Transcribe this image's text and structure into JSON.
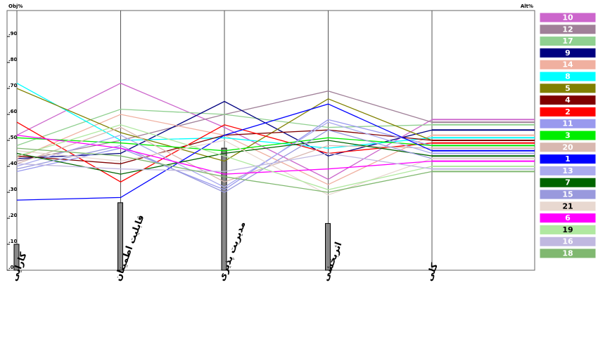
{
  "chart_data": {
    "type": "parallel",
    "y_axis_label": "Obj%",
    "alt_axis_label": "Alt%",
    "categories": [
      "کارایی",
      "قابلیت اطمینان",
      "مدیریت پذیری",
      "اثربخشی",
      "کلی"
    ],
    "weights": [
      0.1,
      0.26,
      0.47,
      0.18,
      null
    ],
    "ylim": [
      0,
      1
    ],
    "yticks": [
      {
        "value": 0,
        "label": ".00"
      },
      {
        "value": 0.1,
        "label": ".10"
      },
      {
        "value": 0.2,
        "label": ".20"
      },
      {
        "value": 0.3,
        "label": ".30"
      },
      {
        "value": 0.4,
        "label": ".40"
      },
      {
        "value": 0.5,
        "label": ".50"
      },
      {
        "value": 0.6,
        "label": ".60"
      },
      {
        "value": 0.7,
        "label": ".70"
      },
      {
        "value": 0.8,
        "label": ".80"
      },
      {
        "value": 0.9,
        "label": ".90"
      }
    ],
    "series": [
      {
        "name": "10",
        "color": "#cc66cc",
        "values": [
          0.52,
          0.72,
          0.55,
          0.35,
          0.58
        ]
      },
      {
        "name": "12",
        "color": "#a08098",
        "values": [
          0.42,
          0.5,
          0.6,
          0.69,
          0.57
        ]
      },
      {
        "name": "17",
        "color": "#90d090",
        "values": [
          0.48,
          0.62,
          0.6,
          0.55,
          0.56
        ]
      },
      {
        "name": "9",
        "color": "#000080",
        "values": [
          0.43,
          0.45,
          0.65,
          0.44,
          0.54
        ]
      },
      {
        "name": "14",
        "color": "#f0b0a0",
        "values": [
          0.43,
          0.6,
          0.52,
          0.33,
          0.52
        ]
      },
      {
        "name": "8",
        "color": "#00ffff",
        "values": [
          0.72,
          0.5,
          0.51,
          0.47,
          0.51
        ]
      },
      {
        "name": "5",
        "color": "#808000",
        "values": [
          0.7,
          0.53,
          0.42,
          0.66,
          0.5
        ]
      },
      {
        "name": "4",
        "color": "#800000",
        "values": [
          0.44,
          0.41,
          0.52,
          0.54,
          0.5
        ]
      },
      {
        "name": "2",
        "color": "#ff0000",
        "values": [
          0.57,
          0.34,
          0.56,
          0.45,
          0.49
        ]
      },
      {
        "name": "11",
        "color": "#9999ee",
        "values": [
          0.38,
          0.47,
          0.31,
          0.58,
          0.48
        ]
      },
      {
        "name": "3",
        "color": "#00ee00",
        "values": [
          0.51,
          0.49,
          0.46,
          0.51,
          0.48
        ]
      },
      {
        "name": "20",
        "color": "#d8b8b0",
        "values": [
          0.41,
          0.55,
          0.34,
          0.48,
          0.47
        ]
      },
      {
        "name": "1",
        "color": "#0000ff",
        "values": [
          0.27,
          0.28,
          0.52,
          0.64,
          0.46
        ]
      },
      {
        "name": "13",
        "color": "#aaaaee",
        "values": [
          0.4,
          0.52,
          0.32,
          0.57,
          0.45
        ]
      },
      {
        "name": "7",
        "color": "#006400",
        "values": [
          0.45,
          0.37,
          0.45,
          0.5,
          0.44
        ]
      },
      {
        "name": "15",
        "color": "#9999dd",
        "values": [
          0.39,
          0.48,
          0.3,
          0.54,
          0.43
        ]
      },
      {
        "name": "21",
        "color": "#e8d8d0",
        "values": [
          0.46,
          0.42,
          0.5,
          0.29,
          0.43
        ]
      },
      {
        "name": "6",
        "color": "#ff00ff",
        "values": [
          0.52,
          0.47,
          0.37,
          0.39,
          0.42
        ]
      },
      {
        "name": "19",
        "color": "#b0e8a0",
        "values": [
          0.44,
          0.56,
          0.44,
          0.31,
          0.4
        ]
      },
      {
        "name": "16",
        "color": "#c0b8e0",
        "values": [
          0.41,
          0.39,
          0.38,
          0.45,
          0.39
        ]
      },
      {
        "name": "18",
        "color": "#80b870",
        "values": [
          0.47,
          0.44,
          0.36,
          0.3,
          0.38
        ]
      }
    ]
  }
}
